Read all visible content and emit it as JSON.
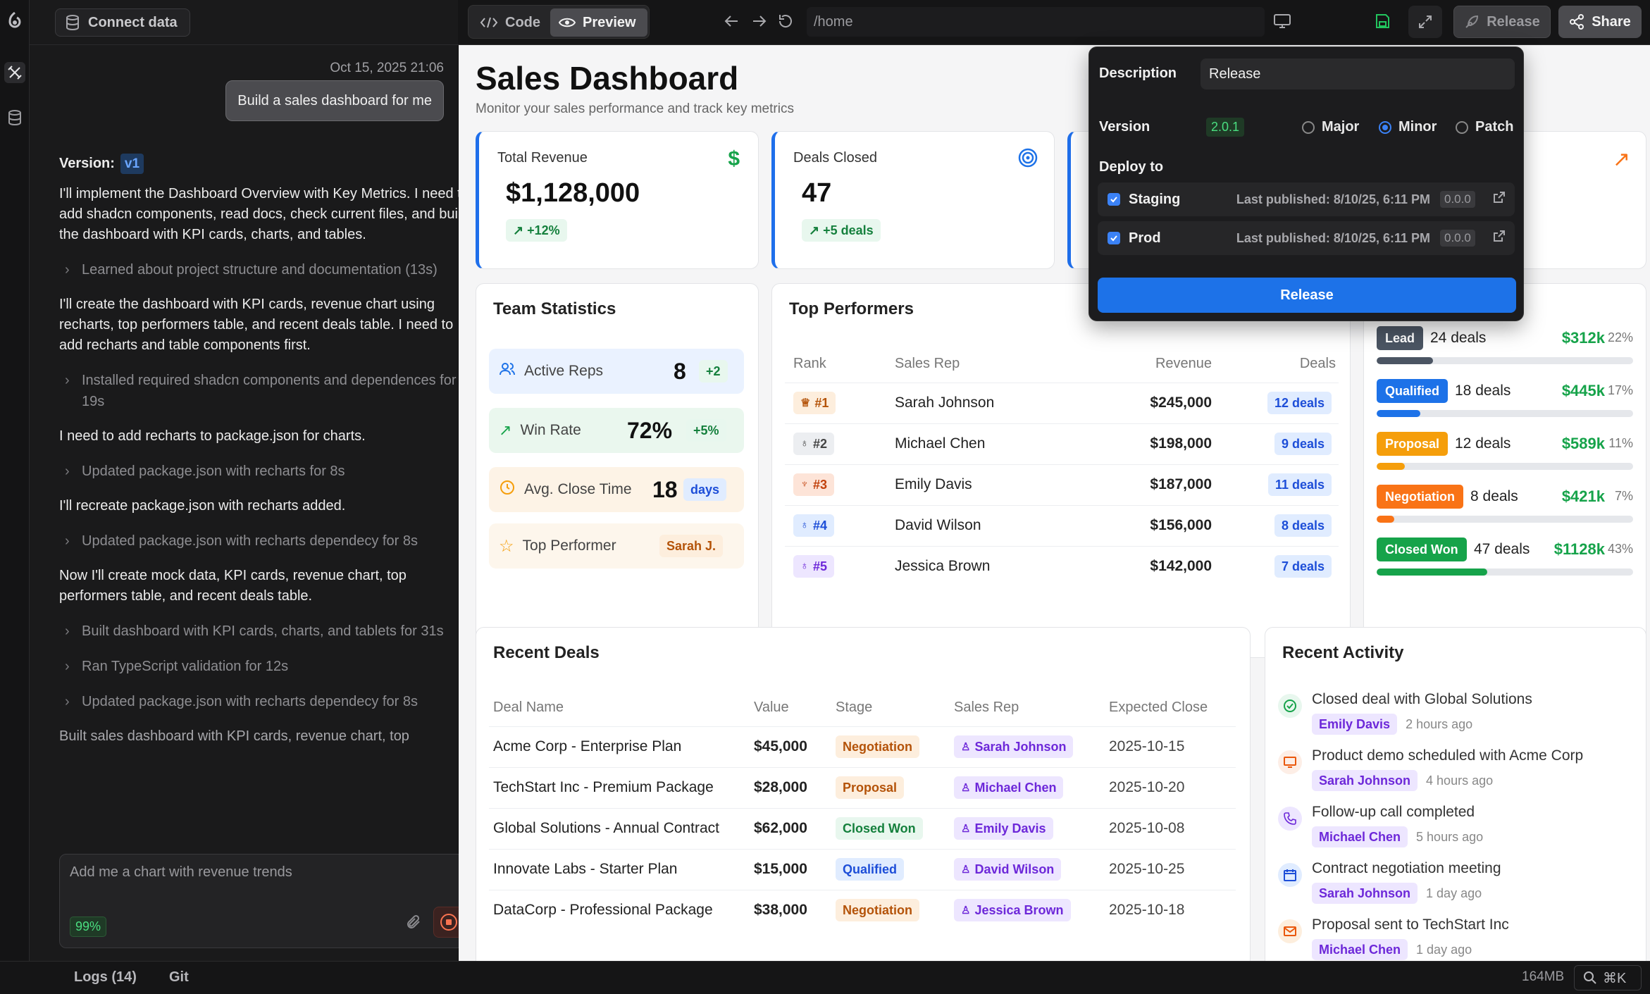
{
  "sidebar": {
    "connect_label": "Connect data"
  },
  "chat": {
    "date": "Oct 15, 2025 21:06",
    "user_message": "Build a sales dashboard for me",
    "version_label": "Version:",
    "version_value": "v1",
    "messages": [
      "I'll implement the Dashboard Overview with Key Metrics. I need to add shadcn components, read docs, check current files, and build the dashboard with KPI cards, charts, and tables.",
      "Learned about project structure and documentation (13s)",
      "I'll create the dashboard with KPI cards, revenue chart using recharts, top performers table, and recent deals table. I need to add recharts and table components first.",
      "Installed required shadcn components and dependences for 19s",
      "I need to add recharts to package.json for charts.",
      "Updated package.json with recharts for 8s",
      "I'll recreate package.json with recharts added.",
      "Updated package.json with recharts dependecy for 8s",
      "Now I'll create mock data, KPI cards, revenue chart, top performers table, and recent deals table.",
      "Built dashboard with KPI cards, charts, and tablets for 31s",
      "Ran TypeScript validation for 12s",
      "Updated package.json with recharts dependecy for 8s",
      "Built sales dashboard with KPI cards, revenue chart, top"
    ],
    "input_placeholder": "Add me a chart with revenue trends",
    "context_pct": "99%"
  },
  "toolbar": {
    "code_label": "Code",
    "preview_label": "Preview",
    "url": "/home",
    "release_label": "Release",
    "share_label": "Share"
  },
  "dashboard": {
    "title": "Sales Dashboard",
    "subtitle": "Monitor your sales performance and track key metrics",
    "kpis": [
      {
        "label": "Total Revenue",
        "value": "$1,128,000",
        "delta": "+12%"
      },
      {
        "label": "Deals Closed",
        "value": "47",
        "delta": "+5 deals"
      }
    ],
    "team_stats": {
      "title": "Team Statistics",
      "active_reps": {
        "label": "Active Reps",
        "value": "8",
        "delta": "+2"
      },
      "win_rate": {
        "label": "Win Rate",
        "value": "72%",
        "delta": "+5%"
      },
      "avg_close": {
        "label": "Avg. Close Time",
        "value": "18",
        "unit": "days"
      },
      "top_performer": {
        "label": "Top Performer",
        "value": "Sarah J."
      }
    },
    "top_performers": {
      "title": "Top Performers",
      "headers": [
        "Rank",
        "Sales Rep",
        "Revenue",
        "Deals"
      ],
      "rows": [
        {
          "rank": "#1",
          "name": "Sarah Johnson",
          "revenue": "$245,000",
          "deals": "12 deals"
        },
        {
          "rank": "#2",
          "name": "Michael Chen",
          "revenue": "$198,000",
          "deals": "9 deals"
        },
        {
          "rank": "#3",
          "name": "Emily Davis",
          "revenue": "$187,000",
          "deals": "11 deals"
        },
        {
          "rank": "#4",
          "name": "David Wilson",
          "revenue": "$156,000",
          "deals": "8 deals"
        },
        {
          "rank": "#5",
          "name": "Jessica Brown",
          "revenue": "$142,000",
          "deals": "7 deals"
        }
      ]
    },
    "pipeline": [
      {
        "stage": "Lead",
        "deals": "24 deals",
        "value": "$312k",
        "pct": "22%",
        "fill": 0.22,
        "color": "#4b5563"
      },
      {
        "stage": "Qualified",
        "deals": "18 deals",
        "value": "$445k",
        "pct": "17%",
        "fill": 0.17,
        "color": "#1d72e8"
      },
      {
        "stage": "Proposal",
        "deals": "12 deals",
        "value": "$589k",
        "pct": "11%",
        "fill": 0.11,
        "color": "#f59e0b"
      },
      {
        "stage": "Negotiation",
        "deals": "8 deals",
        "value": "$421k",
        "pct": "7%",
        "fill": 0.07,
        "color": "#f97316"
      },
      {
        "stage": "Closed Won",
        "deals": "47 deals",
        "value": "$1128k",
        "pct": "43%",
        "fill": 0.43,
        "color": "#16a34a"
      }
    ],
    "recent_deals": {
      "title": "Recent Deals",
      "headers": [
        "Deal Name",
        "Value",
        "Stage",
        "Sales Rep",
        "Expected Close"
      ],
      "rows": [
        {
          "name": "Acme Corp - Enterprise Plan",
          "value": "$45,000",
          "stage": "Negotiation",
          "rep": "Sarah Johnson",
          "close": "2025-10-15"
        },
        {
          "name": "TechStart Inc - Premium Package",
          "value": "$28,000",
          "stage": "Proposal",
          "rep": "Michael Chen",
          "close": "2025-10-20"
        },
        {
          "name": "Global Solutions - Annual Contract",
          "value": "$62,000",
          "stage": "Closed Won",
          "rep": "Emily Davis",
          "close": "2025-10-08"
        },
        {
          "name": "Innovate Labs - Starter Plan",
          "value": "$15,000",
          "stage": "Qualified",
          "rep": "David Wilson",
          "close": "2025-10-25"
        },
        {
          "name": "DataCorp - Professional Package",
          "value": "$38,000",
          "stage": "Negotiation",
          "rep": "Jessica Brown",
          "close": "2025-10-18"
        }
      ]
    },
    "recent_activity": {
      "title": "Recent Activity",
      "items": [
        {
          "title": "Closed deal with Global Solutions",
          "person": "Emily Davis",
          "time": "2 hours ago"
        },
        {
          "title": "Product demo scheduled with Acme Corp",
          "person": "Sarah Johnson",
          "time": "4 hours ago"
        },
        {
          "title": "Follow-up call completed",
          "person": "Michael Chen",
          "time": "5 hours ago"
        },
        {
          "title": "Contract negotiation meeting",
          "person": "Sarah Johnson",
          "time": "1 day ago"
        },
        {
          "title": "Proposal sent to TechStart Inc",
          "person": "Michael Chen",
          "time": "1 day ago"
        }
      ]
    }
  },
  "release_popover": {
    "description_label": "Description",
    "description_value": "Release",
    "version_label": "Version",
    "version_value": "2.0.1",
    "options": [
      "Major",
      "Minor",
      "Patch"
    ],
    "selected": "Minor",
    "deploy_label": "Deploy to",
    "targets": [
      {
        "name": "Staging",
        "published": "Last published: 8/10/25, 6:11 PM",
        "version": "0.0.0"
      },
      {
        "name": "Prod",
        "published": "Last published: 8/10/25, 6:11 PM",
        "version": "0.0.0"
      }
    ],
    "release_button": "Release"
  },
  "bottom_bar": {
    "logs": "Logs (14)",
    "git": "Git",
    "memory": "164MB",
    "shortcut": "⌘K"
  }
}
